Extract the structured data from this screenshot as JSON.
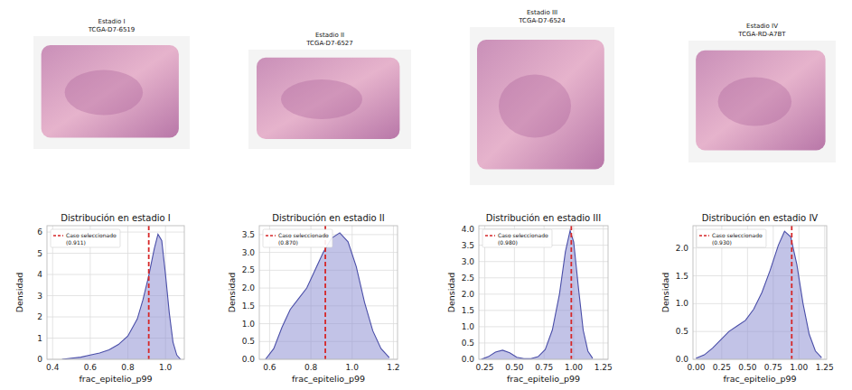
{
  "chart_data": [
    {
      "type": "area",
      "image_caption": "Estadio I",
      "case_id": "TCGA-D7-6519",
      "title": "Distribución en estadio I",
      "x_label": "frac_epitelio_p99",
      "y_label": "Densidad",
      "x": [
        0.45,
        0.5,
        0.55,
        0.6,
        0.65,
        0.7,
        0.75,
        0.8,
        0.85,
        0.88,
        0.91,
        0.94,
        0.96,
        0.98,
        1.0,
        1.02,
        1.04,
        1.06,
        1.08
      ],
      "values": [
        0,
        0.05,
        0.1,
        0.2,
        0.3,
        0.45,
        0.7,
        1.1,
        1.9,
        2.8,
        3.9,
        5.2,
        5.9,
        5.6,
        4.0,
        2.2,
        0.8,
        0.2,
        0
      ],
      "color": "#8f92d4",
      "xlim": [
        0.37,
        1.1
      ],
      "xticks": [
        0.4,
        0.6,
        0.8,
        {
          "value": 1.0,
          "label": "1.0"
        }
      ],
      "ylim": [
        0,
        6.3
      ],
      "yticks": [
        0,
        1,
        2,
        3,
        4,
        5,
        6
      ],
      "grid": true,
      "legend": "upper left",
      "reference_line": {
        "value": 0.911,
        "label": "Caso seleccionado",
        "value_label": "(0.911)",
        "color": "#d62728",
        "line_style": "dashed"
      }
    },
    {
      "type": "area",
      "image_caption": "Estadio II",
      "case_id": "TCGA-D7-6527",
      "title": "Distribución en estadio II",
      "x_label": "frac_epitelio_p99",
      "y_label": "Densidad",
      "x": [
        0.58,
        0.62,
        0.66,
        0.7,
        0.74,
        0.78,
        0.82,
        0.86,
        0.9,
        0.94,
        0.98,
        1.02,
        1.06,
        1.1,
        1.14,
        1.18
      ],
      "values": [
        0,
        0.3,
        0.9,
        1.4,
        1.7,
        2.0,
        2.5,
        3.0,
        3.4,
        3.55,
        3.3,
        2.6,
        1.6,
        0.8,
        0.3,
        0.05
      ],
      "color": "#8f92d4",
      "xlim": [
        0.55,
        1.22
      ],
      "xticks": [
        0.6,
        0.8,
        {
          "value": 1.0,
          "label": "1.0"
        },
        1.2
      ],
      "ylim": [
        0,
        3.75
      ],
      "yticks": [
        {
          "value": 0,
          "label": "0.0"
        },
        0.5,
        {
          "value": 1,
          "label": "1.0"
        },
        1.5,
        {
          "value": 2,
          "label": "2.0"
        },
        2.5,
        {
          "value": 3,
          "label": "3.0"
        },
        3.5
      ],
      "grid": true,
      "legend": "upper left",
      "reference_line": {
        "value": 0.87,
        "label": "Caso seleccionado",
        "value_label": "(0.870)",
        "color": "#d62728",
        "line_style": "dashed"
      }
    },
    {
      "type": "area",
      "image_caption": "Estadio III",
      "case_id": "TCGA-D7-6524",
      "title": "Distribución en estadio III",
      "x_label": "frac_epitelio_p99",
      "y_label": "Densidad",
      "x": [
        0.22,
        0.28,
        0.34,
        0.4,
        0.46,
        0.52,
        0.58,
        0.64,
        0.7,
        0.76,
        0.82,
        0.88,
        0.93,
        0.97,
        1.0,
        1.04,
        1.08,
        1.12,
        1.16
      ],
      "values": [
        0,
        0.08,
        0.22,
        0.28,
        0.2,
        0.06,
        0.02,
        0.02,
        0.08,
        0.3,
        0.9,
        2.0,
        3.3,
        3.95,
        3.6,
        2.2,
        0.9,
        0.25,
        0.03
      ],
      "color": "#8f92d4",
      "xlim": [
        0.2,
        1.29
      ],
      "xticks": [
        0.25,
        {
          "value": 0.5,
          "label": "0.50"
        },
        0.75,
        {
          "value": 1.0,
          "label": "1.00"
        },
        1.25
      ],
      "ylim": [
        0,
        4.1
      ],
      "yticks": [
        {
          "value": 0,
          "label": "0.0"
        },
        0.5,
        {
          "value": 1,
          "label": "1.0"
        },
        1.5,
        {
          "value": 2,
          "label": "2.0"
        },
        2.5,
        {
          "value": 3,
          "label": "3.0"
        },
        3.5,
        {
          "value": 4,
          "label": "4.0"
        }
      ],
      "grid": true,
      "legend": "upper left",
      "reference_line": {
        "value": 0.98,
        "label": "Caso seleccionado",
        "value_label": "(0.980)",
        "color": "#d62728",
        "line_style": "dashed"
      }
    },
    {
      "type": "area",
      "image_caption": "Estadio IV",
      "case_id": "TCGA-RD-A7BT",
      "title": "Distribución en estadio IV",
      "x_label": "frac_epitelio_p99",
      "y_label": "Densidad",
      "x": [
        0.0,
        0.08,
        0.16,
        0.24,
        0.32,
        0.4,
        0.48,
        0.56,
        0.64,
        0.72,
        0.8,
        0.86,
        0.92,
        0.98,
        1.04,
        1.1,
        1.16,
        1.22
      ],
      "values": [
        0.02,
        0.08,
        0.2,
        0.35,
        0.5,
        0.6,
        0.7,
        0.9,
        1.2,
        1.6,
        2.05,
        2.3,
        2.2,
        1.7,
        1.0,
        0.45,
        0.15,
        0.03
      ],
      "color": "#8f92d4",
      "xlim": [
        -0.03,
        1.27
      ],
      "xticks": [
        {
          "value": 0,
          "label": "0.00"
        },
        0.25,
        {
          "value": 0.5,
          "label": "0.50"
        },
        0.75,
        {
          "value": 1.0,
          "label": "1.00"
        },
        1.25
      ],
      "ylim": [
        0,
        2.4
      ],
      "yticks": [
        {
          "value": 0,
          "label": "0.0"
        },
        0.5,
        {
          "value": 1,
          "label": "1.0"
        },
        1.5,
        {
          "value": 2,
          "label": "2.0"
        }
      ],
      "grid": true,
      "legend": "upper left",
      "reference_line": {
        "value": 0.93,
        "label": "Caso seleccionado",
        "value_label": "(0.930)",
        "color": "#d62728",
        "line_style": "dashed"
      }
    }
  ]
}
